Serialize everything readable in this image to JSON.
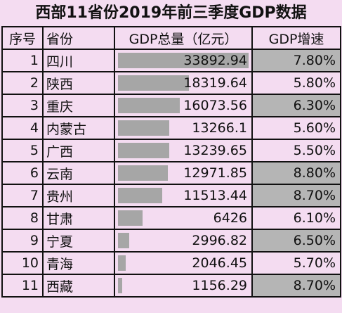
{
  "title": "西部11省份2019年前三季度GDP数据",
  "headers": [
    "序号",
    "省份",
    "GDP总量（亿元）",
    "GDP增速"
  ],
  "chart_data": {
    "type": "table",
    "title": "西部11省份2019年前三季度GDP数据",
    "columns": [
      "序号",
      "省份",
      "GDP总量（亿元）",
      "GDP增速"
    ],
    "bar_max": 33892.94,
    "rows": [
      {
        "idx": "1",
        "name": "四川",
        "gdp": 33892.94,
        "gdp_text": "33892.94",
        "growth": "7.80%",
        "growth_highlight": true
      },
      {
        "idx": "2",
        "name": "陕西",
        "gdp": 18319.64,
        "gdp_text": "18319.64",
        "growth": "5.80%",
        "growth_highlight": false
      },
      {
        "idx": "3",
        "name": "重庆",
        "gdp": 16073.56,
        "gdp_text": "16073.56",
        "growth": "6.30%",
        "growth_highlight": true
      },
      {
        "idx": "4",
        "name": "内蒙古",
        "gdp": 13266.1,
        "gdp_text": "13266.1",
        "growth": "5.60%",
        "growth_highlight": false
      },
      {
        "idx": "5",
        "name": "广西",
        "gdp": 13239.65,
        "gdp_text": "13239.65",
        "growth": "5.50%",
        "growth_highlight": false
      },
      {
        "idx": "6",
        "name": "云南",
        "gdp": 12971.85,
        "gdp_text": "12971.85",
        "growth": "8.80%",
        "growth_highlight": true
      },
      {
        "idx": "7",
        "name": "贵州",
        "gdp": 11513.44,
        "gdp_text": "11513.44",
        "growth": "8.70%",
        "growth_highlight": true
      },
      {
        "idx": "8",
        "name": "甘肃",
        "gdp": 6426,
        "gdp_text": "6426",
        "growth": "6.10%",
        "growth_highlight": false
      },
      {
        "idx": "9",
        "name": "宁夏",
        "gdp": 2996.82,
        "gdp_text": "2996.82",
        "growth": "6.50%",
        "growth_highlight": true
      },
      {
        "idx": "10",
        "name": "青海",
        "gdp": 2046.45,
        "gdp_text": "2046.45",
        "growth": "5.70%",
        "growth_highlight": false
      },
      {
        "idx": "11",
        "name": "西藏",
        "gdp": 1156.29,
        "gdp_text": "1156.29",
        "growth": "8.70%",
        "growth_highlight": true
      }
    ]
  },
  "colors": {
    "background": "#f4dcf1",
    "bar": "#a6a6a6",
    "highlight": "#b5b5b5",
    "border": "#111111"
  }
}
